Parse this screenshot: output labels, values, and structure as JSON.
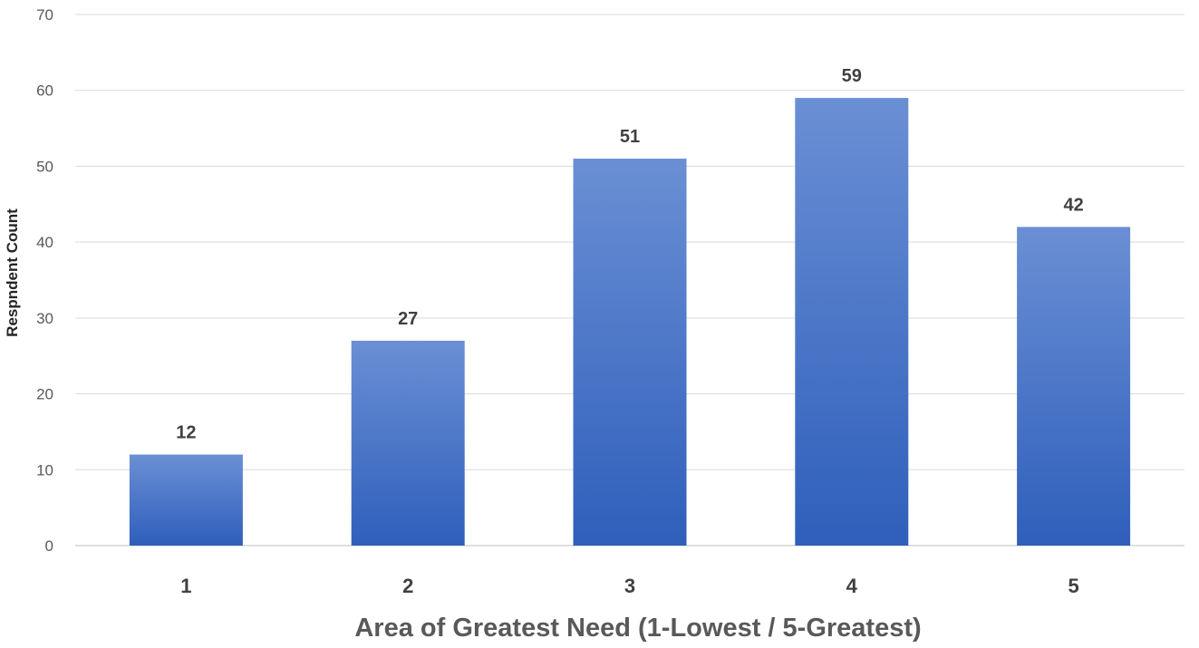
{
  "chart_data": {
    "type": "bar",
    "title": "",
    "xlabel": "Area of Greatest Need (1-Lowest / 5-Greatest)",
    "ylabel": "Respndent Count",
    "categories": [
      "1",
      "2",
      "3",
      "4",
      "5"
    ],
    "values": [
      12,
      27,
      51,
      59,
      42
    ],
    "ylim": [
      0,
      70
    ],
    "yticks": [
      0,
      10,
      20,
      30,
      40,
      50,
      60,
      70
    ],
    "grid": true,
    "legend": "none",
    "data_labels": true,
    "colors": {
      "bar_top": "#6a8fd4",
      "bar_bottom": "#2f5fbb",
      "gridline": "#d9d9d9",
      "axis_line": "#bfbfbf"
    }
  }
}
